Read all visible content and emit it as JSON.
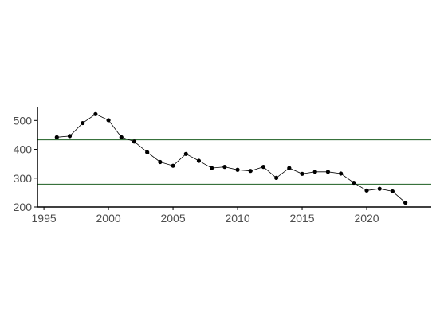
{
  "chart_data": {
    "type": "line",
    "title": "",
    "xlabel": "",
    "ylabel": "",
    "xlim": [
      1994.5,
      2025
    ],
    "ylim": [
      200,
      545
    ],
    "xticks": [
      1995,
      2000,
      2005,
      2010,
      2015,
      2020
    ],
    "yticks": [
      200,
      300,
      400,
      500
    ],
    "grid": false,
    "series": [
      {
        "x": [
          1996,
          1997,
          1998,
          1999,
          2000,
          2001,
          2002,
          2003,
          2004,
          2005,
          2006,
          2007,
          2008,
          2009,
          2010,
          2011,
          2012,
          2013,
          2014,
          2015,
          2016,
          2017,
          2018,
          2019,
          2020,
          2021,
          2022,
          2023
        ],
        "y": [
          442,
          446,
          491,
          522,
          501,
          442,
          427,
          390,
          356,
          343,
          384,
          360,
          335,
          339,
          329,
          325,
          339,
          301,
          335,
          315,
          322,
          322,
          316,
          284,
          257,
          263,
          254,
          215
        ],
        "color": "#000000"
      }
    ],
    "reference_lines": [
      {
        "y": 433,
        "style": "solid",
        "color": "#1b5e20"
      },
      {
        "y": 356,
        "style": "dotted",
        "color": "#1a1a1a"
      },
      {
        "y": 279,
        "style": "solid",
        "color": "#1b5e20"
      }
    ]
  }
}
